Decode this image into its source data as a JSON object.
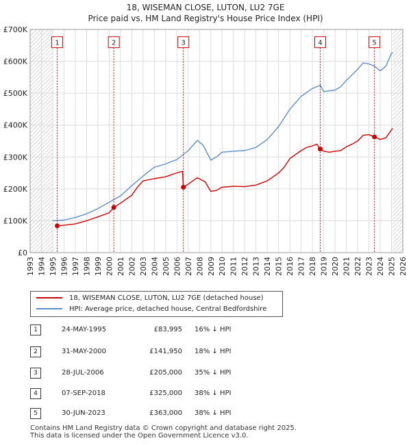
{
  "chart_data": {
    "type": "line",
    "title": "18, WISEMAN CLOSE, LUTON, LU2 7GE",
    "subtitle": "Price paid vs. HM Land Registry's House Price Index (HPI)",
    "xlim": [
      1993,
      2026
    ],
    "ylim": [
      0,
      700000
    ],
    "y_ticks": [
      {
        "value": 0,
        "label": "£0"
      },
      {
        "value": 100000,
        "label": "£100K"
      },
      {
        "value": 200000,
        "label": "£200K"
      },
      {
        "value": 300000,
        "label": "£300K"
      },
      {
        "value": 400000,
        "label": "£400K"
      },
      {
        "value": 500000,
        "label": "£500K"
      },
      {
        "value": 600000,
        "label": "£600K"
      },
      {
        "value": 700000,
        "label": "£700K"
      }
    ],
    "x_ticks": [
      "1993",
      "1994",
      "1995",
      "1996",
      "1997",
      "1998",
      "1999",
      "2000",
      "2001",
      "2002",
      "2003",
      "2004",
      "2005",
      "2006",
      "2007",
      "2008",
      "2009",
      "2010",
      "2011",
      "2012",
      "2013",
      "2014",
      "2015",
      "2016",
      "2017",
      "2018",
      "2019",
      "2020",
      "2021",
      "2022",
      "2023",
      "2024",
      "2025",
      "2026"
    ],
    "hatch_before": 1995.0,
    "hatch_after": 2025.1,
    "grid": true,
    "series": [
      {
        "name": "18, WISEMAN CLOSE, LUTON, LU2 7GE (detached house)",
        "color": "#cc0000",
        "points": [
          [
            1995.4,
            83995
          ],
          [
            1996.0,
            86000
          ],
          [
            1997.0,
            90000
          ],
          [
            1998.0,
            100000
          ],
          [
            1999.0,
            112000
          ],
          [
            2000.0,
            125000
          ],
          [
            2000.41,
            141950
          ],
          [
            2001.0,
            155000
          ],
          [
            2002.0,
            180000
          ],
          [
            2002.5,
            205000
          ],
          [
            2003.0,
            225000
          ],
          [
            2004.0,
            232000
          ],
          [
            2005.0,
            238000
          ],
          [
            2005.8,
            248000
          ],
          [
            2006.5,
            255000
          ],
          [
            2006.57,
            205000
          ],
          [
            2007.0,
            215000
          ],
          [
            2007.8,
            235000
          ],
          [
            2008.5,
            222000
          ],
          [
            2009.0,
            192000
          ],
          [
            2009.5,
            195000
          ],
          [
            2010.0,
            205000
          ],
          [
            2011.0,
            208000
          ],
          [
            2012.0,
            207000
          ],
          [
            2013.0,
            212000
          ],
          [
            2014.0,
            225000
          ],
          [
            2015.0,
            250000
          ],
          [
            2015.5,
            268000
          ],
          [
            2016.0,
            295000
          ],
          [
            2017.0,
            320000
          ],
          [
            2017.5,
            330000
          ],
          [
            2018.0,
            335000
          ],
          [
            2018.4,
            340000
          ],
          [
            2018.69,
            325000
          ],
          [
            2019.0,
            318000
          ],
          [
            2019.5,
            315000
          ],
          [
            2020.0,
            318000
          ],
          [
            2020.5,
            320000
          ],
          [
            2021.0,
            332000
          ],
          [
            2021.5,
            340000
          ],
          [
            2022.0,
            350000
          ],
          [
            2022.5,
            368000
          ],
          [
            2023.0,
            370000
          ],
          [
            2023.49,
            363000
          ],
          [
            2024.0,
            355000
          ],
          [
            2024.5,
            360000
          ],
          [
            2025.0,
            385000
          ],
          [
            2025.1,
            390000
          ]
        ]
      },
      {
        "name": "HPI: Average price, detached house, Central Bedfordshire",
        "color": "#5b8ec9",
        "points": [
          [
            1995.0,
            100000
          ],
          [
            1996.0,
            102000
          ],
          [
            1997.0,
            110000
          ],
          [
            1998.0,
            122000
          ],
          [
            1999.0,
            138000
          ],
          [
            2000.0,
            158000
          ],
          [
            2001.0,
            178000
          ],
          [
            2002.0,
            210000
          ],
          [
            2003.0,
            240000
          ],
          [
            2004.0,
            268000
          ],
          [
            2005.0,
            278000
          ],
          [
            2006.0,
            292000
          ],
          [
            2007.0,
            320000
          ],
          [
            2007.8,
            352000
          ],
          [
            2008.3,
            338000
          ],
          [
            2009.0,
            290000
          ],
          [
            2009.5,
            300000
          ],
          [
            2010.0,
            315000
          ],
          [
            2011.0,
            318000
          ],
          [
            2012.0,
            320000
          ],
          [
            2013.0,
            330000
          ],
          [
            2014.0,
            355000
          ],
          [
            2015.0,
            395000
          ],
          [
            2016.0,
            450000
          ],
          [
            2017.0,
            490000
          ],
          [
            2018.0,
            515000
          ],
          [
            2018.7,
            525000
          ],
          [
            2019.0,
            505000
          ],
          [
            2020.0,
            510000
          ],
          [
            2020.5,
            520000
          ],
          [
            2021.0,
            540000
          ],
          [
            2022.0,
            575000
          ],
          [
            2022.5,
            595000
          ],
          [
            2023.0,
            592000
          ],
          [
            2023.5,
            585000
          ],
          [
            2024.0,
            570000
          ],
          [
            2024.5,
            585000
          ],
          [
            2025.0,
            625000
          ],
          [
            2025.1,
            628000
          ]
        ]
      }
    ],
    "transactions": [
      {
        "label": "1",
        "x": 1995.4,
        "price": 83995
      },
      {
        "label": "2",
        "x": 2000.41,
        "price": 141950
      },
      {
        "label": "3",
        "x": 2006.57,
        "price": 205000
      },
      {
        "label": "4",
        "x": 2018.69,
        "price": 325000
      },
      {
        "label": "5",
        "x": 2023.49,
        "price": 363000
      }
    ],
    "marker_box_value": 660000
  },
  "legend": {
    "property": "18, WISEMAN CLOSE, LUTON, LU2 7GE (detached house)",
    "hpi": "HPI: Average price, detached house, Central Bedfordshire"
  },
  "table": [
    {
      "num": "1",
      "date": "24-MAY-1995",
      "price": "£83,995",
      "hpi": "16% ↓ HPI"
    },
    {
      "num": "2",
      "date": "31-MAY-2000",
      "price": "£141,950",
      "hpi": "18% ↓ HPI"
    },
    {
      "num": "3",
      "date": "28-JUL-2006",
      "price": "£205,000",
      "hpi": "35% ↓ HPI"
    },
    {
      "num": "4",
      "date": "07-SEP-2018",
      "price": "£325,000",
      "hpi": "38% ↓ HPI"
    },
    {
      "num": "5",
      "date": "30-JUN-2023",
      "price": "£363,000",
      "hpi": "38% ↓ HPI"
    }
  ],
  "footer": {
    "line1": "Contains HM Land Registry data © Crown copyright and database right 2025.",
    "line2": "This data is licensed under the Open Government Licence v3.0."
  }
}
